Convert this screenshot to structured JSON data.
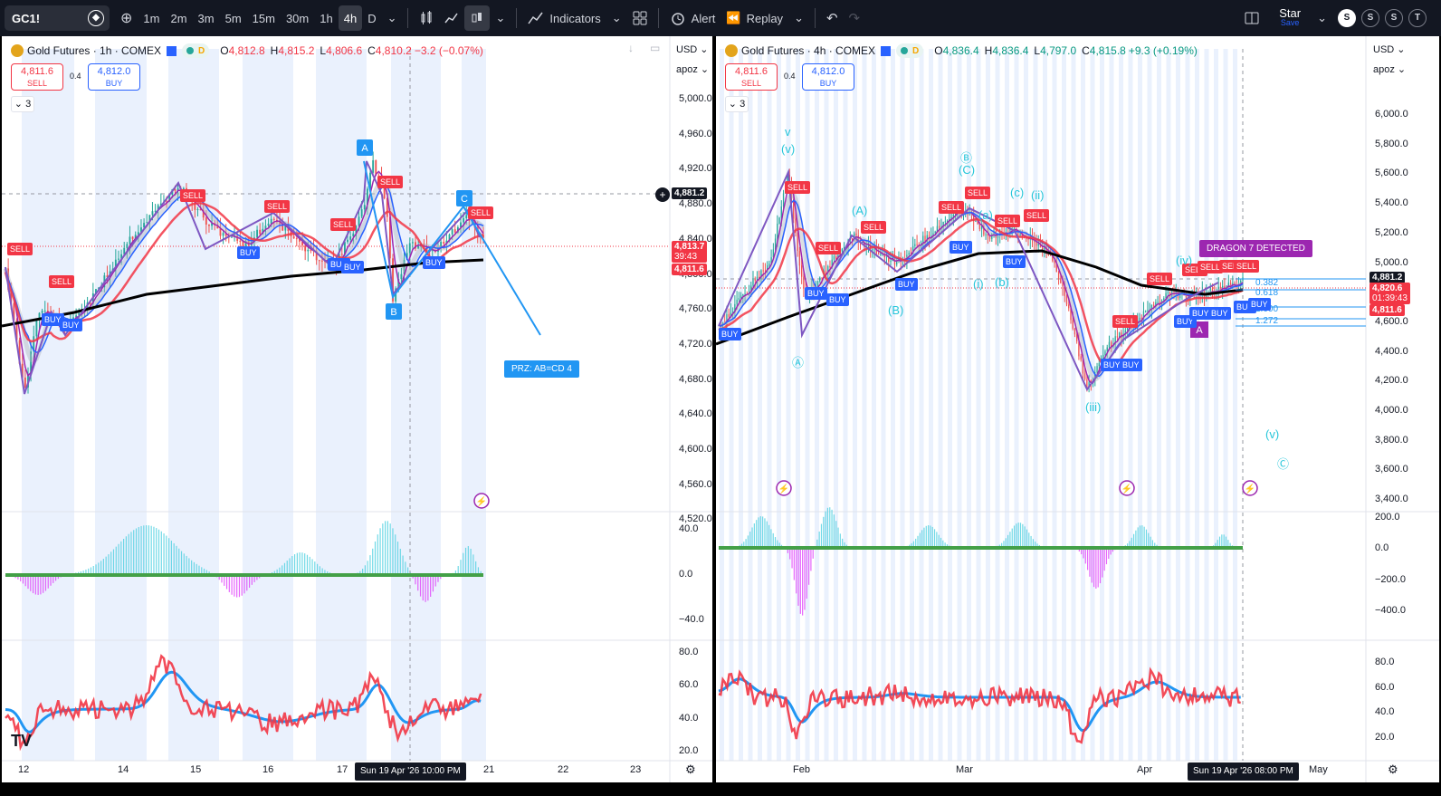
{
  "toolbar": {
    "symbol": "GC1!",
    "intervals": [
      "1m",
      "2m",
      "3m",
      "5m",
      "15m",
      "30m",
      "1h",
      "4h",
      "D"
    ],
    "active_interval": "4h",
    "indicators_label": "Indicators",
    "alert_label": "Alert",
    "replay_label": "Replay",
    "user_name": "Star",
    "save_label": "Save",
    "shortcuts": [
      "S",
      "S",
      "S",
      "T"
    ]
  },
  "left": {
    "title": "Gold Futures · 1h · COMEX",
    "ohlc": {
      "o": "4,812.8",
      "h": "4,815.2",
      "l": "4,806.6",
      "c": "4,810.2",
      "chg": "−3.2 (−0.07%)"
    },
    "sell_price": "4,811.6",
    "sell_label": "SELL",
    "buy_price": "4,812.0",
    "buy_label": "BUY",
    "spread": "0.4",
    "indicators_count": "3",
    "currency": "USD",
    "scale_mode": "apoz",
    "price_ticks": [
      "5,000.0",
      "4,960.0",
      "4,920.0",
      "4,880.0",
      "4,840.0",
      "4,800.0",
      "4,760.0",
      "4,720.0",
      "4,680.0",
      "4,640.0",
      "4,600.0",
      "4,560.0",
      "4,520.0"
    ],
    "crosshair_price": "4,881.2",
    "last_price": "4,813.7",
    "countdown": "39:43",
    "bid_price": "4,811.6",
    "osc_ticks": [
      "40.0",
      "0.0",
      "−40.0"
    ],
    "rsi_ticks": [
      "80.0",
      "60.0",
      "40.0",
      "20.0"
    ],
    "time_ticks": [
      "12",
      "14",
      "15",
      "16",
      "17",
      "21",
      "22",
      "23"
    ],
    "crosshair_time": "Sun 19 Apr '26   10:00 PM",
    "prz_label": "PRZ: AB=CD 4",
    "points": [
      "A",
      "B",
      "C"
    ],
    "signals_sell": [
      "SELL",
      "SELL",
      "SELL",
      "SELL",
      "SELL",
      "SELL",
      "SELL"
    ],
    "signals_buy": [
      "BUY",
      "BUY",
      "BUY",
      "BUY",
      "BUY",
      "BUY"
    ],
    "colors": {
      "sell": "#f23645",
      "buy": "#2962ff",
      "ma200": "#000000",
      "pattern": "#2196f3"
    }
  },
  "right": {
    "title": "Gold Futures · 4h · COMEX",
    "ohlc": {
      "o": "4,836.4",
      "h": "4,836.4",
      "l": "4,797.0",
      "c": "4,815.8",
      "chg": "+9.3 (+0.19%)"
    },
    "sell_price": "4,811.6",
    "sell_label": "SELL",
    "buy_price": "4,812.0",
    "buy_label": "BUY",
    "spread": "0.4",
    "indicators_count": "3",
    "currency": "USD",
    "scale_mode": "apoz",
    "price_ticks": [
      "6,000.0",
      "5,800.0",
      "5,600.0",
      "5,400.0",
      "5,200.0",
      "5,000.0",
      "4,800.0",
      "4,600.0",
      "4,400.0",
      "4,200.0",
      "4,000.0",
      "3,800.0",
      "3,600.0",
      "3,400.0"
    ],
    "crosshair_price": "4,881.2",
    "last_price": "4,820.6",
    "countdown": "01:39:43",
    "bid_price": "4,811.6",
    "osc_ticks": [
      "200.0",
      "0.0",
      "−200.0",
      "−400.0"
    ],
    "rsi_ticks": [
      "80.0",
      "60.0",
      "40.0",
      "20.0"
    ],
    "time_ticks": [
      "Feb",
      "Mar",
      "Apr",
      "May"
    ],
    "crosshair_time": "Sun 19 Apr '26   08:00 PM",
    "dragon_label": "DRAGON 7 DETECTED",
    "fib_labels": [
      "0.382",
      "0.618",
      "1.000",
      "1.272"
    ],
    "waves": [
      "v",
      "(v)",
      "Ⓐ",
      "(A)",
      "(B)",
      "Ⓑ",
      "(C)",
      "(a)",
      "(b)",
      "(c)",
      "(i)",
      "(ii)",
      "(iii)",
      "(iv)",
      "(v)",
      "Ⓒ"
    ],
    "point_a": "A",
    "colors": {
      "wave": "#26c6da",
      "dragon": "#9c27b0"
    }
  }
}
